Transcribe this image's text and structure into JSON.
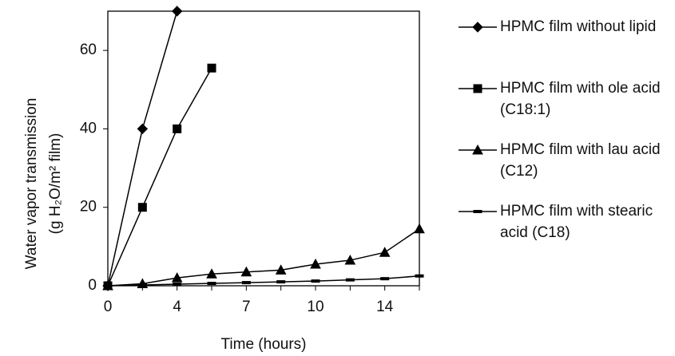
{
  "chart_data": {
    "type": "line",
    "x_label": "Time (hours)",
    "y_label": [
      "Water vapor transmission",
      "(g H₂O/m² film)"
    ],
    "categories": [
      "0",
      null,
      "4",
      null,
      "7",
      null,
      "10",
      null,
      "14",
      null
    ],
    "ylim": [
      0,
      70
    ],
    "yticks": [
      0,
      20,
      40,
      60
    ],
    "series": [
      {
        "name": "HPMC film without lipid",
        "color": "#000000",
        "marker": "diamond",
        "values": [
          0,
          40,
          70,
          null,
          null,
          null,
          null,
          null,
          null,
          null
        ]
      },
      {
        "name": "HPMC film with ole acid (C18:1)",
        "color": "#000000",
        "marker": "square",
        "values": [
          0,
          20,
          40,
          55.5,
          null,
          null,
          null,
          null,
          null,
          null
        ]
      },
      {
        "name": "HPMC film with lau acid (C12)",
        "color": "#000000",
        "marker": "triangle",
        "values": [
          0,
          0.5,
          2,
          3,
          3.5,
          4,
          5.5,
          6.5,
          8.5,
          14.5
        ]
      },
      {
        "name": "HPMC film with stearic acid (C18)",
        "color": "#000000",
        "marker": "dash",
        "values": [
          0,
          0.2,
          0.4,
          0.6,
          0.8,
          1,
          1.2,
          1.5,
          1.8,
          2.5
        ]
      }
    ]
  }
}
